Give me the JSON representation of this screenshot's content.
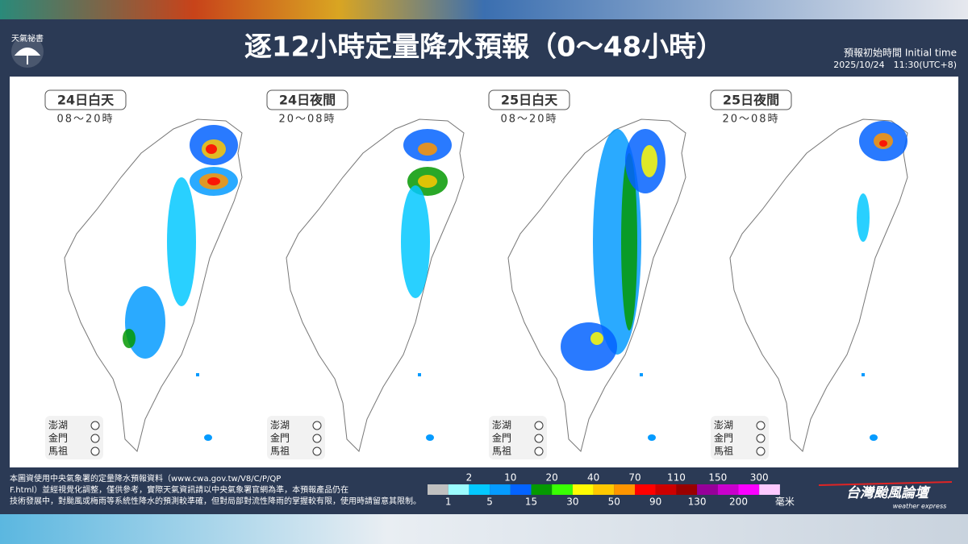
{
  "header": {
    "logo": "天氣祕書",
    "title": "逐12小時定量降水預報（0～48小時）",
    "initial_time_label": "預報初始時間 Initial time",
    "initial_time": "2025/10/24　11:30(UTC+8)"
  },
  "panels": [
    {
      "day": "24日白天",
      "hours": "08～20時",
      "islands": [
        "澎湖",
        "金門",
        "馬祖"
      ]
    },
    {
      "day": "24日夜間",
      "hours": "20～08時",
      "islands": [
        "澎湖",
        "金門",
        "馬祖"
      ]
    },
    {
      "day": "25日白天",
      "hours": "08～20時",
      "islands": [
        "澎湖",
        "金門",
        "馬祖"
      ]
    },
    {
      "day": "25日夜間",
      "hours": "20～08時",
      "islands": [
        "澎湖",
        "金門",
        "馬祖"
      ]
    }
  ],
  "footer": {
    "note": "本圖資使用中央氣象署的定量降水預報資料（www.cwa.gov.tw/V8/C/P/QPF.html）並經視覺化調整，僅供參考，實際天氣資訊請以中央氣象署官網為準，本預報產品仍在技術發展中，對颱風或梅雨等系統性降水的預測較準確，但對局部對流性降雨的掌握較有限，使用時請留意其限制。",
    "brand": "台灣颱風論壇",
    "brand_sub": "weather express"
  },
  "legend": {
    "unit": "毫米",
    "ticks": [
      1,
      2,
      5,
      10,
      15,
      20,
      30,
      40,
      50,
      70,
      90,
      110,
      130,
      150,
      200,
      300
    ],
    "colors": [
      "#c0c0c0",
      "#9cfcff",
      "#03c8ff",
      "#059bff",
      "#0363ff",
      "#059902",
      "#39ff03",
      "#fffb03",
      "#ffc800",
      "#ff9500",
      "#ff0000",
      "#cc0000",
      "#990000",
      "#960099",
      "#c900cc",
      "#fb00ff",
      "#fdc9ff"
    ]
  }
}
